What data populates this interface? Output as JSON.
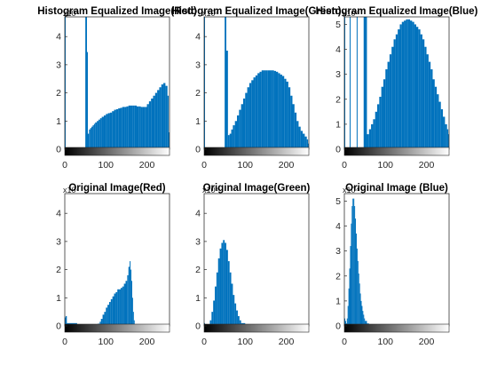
{
  "colors": {
    "bar": "#0072bd",
    "axis": "#262626",
    "background": "#ffffff"
  },
  "chart_data": [
    {
      "type": "bar",
      "title": "Histogram Equalized Image(Red)",
      "xlim": [
        0,
        255
      ],
      "ylim": [
        0,
        4.7
      ],
      "xticks": [
        "0",
        "100",
        "200"
      ],
      "yticks": [
        "0",
        "1",
        "2",
        "3",
        "4"
      ],
      "y_exponent_label": "x10⁴",
      "grid": false,
      "x": [
        0,
        50,
        54,
        56,
        59,
        62,
        65,
        68,
        71,
        74,
        78,
        82,
        86,
        90,
        95,
        100,
        105,
        110,
        115,
        120,
        125,
        130,
        135,
        140,
        145,
        150,
        155,
        160,
        165,
        170,
        175,
        180,
        185,
        190,
        195,
        200,
        205,
        210,
        215,
        220,
        225,
        230,
        235,
        240,
        245,
        250,
        253
      ],
      "values": [
        4.9,
        4.9,
        3.45,
        0.55,
        0.7,
        0.75,
        0.8,
        0.85,
        0.9,
        0.95,
        1.0,
        1.05,
        1.1,
        1.15,
        1.2,
        1.25,
        1.28,
        1.3,
        1.35,
        1.4,
        1.42,
        1.45,
        1.47,
        1.5,
        1.5,
        1.52,
        1.55,
        1.55,
        1.55,
        1.55,
        1.52,
        1.52,
        1.5,
        1.5,
        1.5,
        1.6,
        1.7,
        1.8,
        1.9,
        2.0,
        2.1,
        2.2,
        2.3,
        2.35,
        2.25,
        1.9,
        0.6
      ]
    },
    {
      "type": "bar",
      "title": "Histogram Equalized Image(Green)",
      "xlim": [
        0,
        255
      ],
      "ylim": [
        0,
        4.7
      ],
      "xticks": [
        "0",
        "100",
        "200"
      ],
      "yticks": [
        "0",
        "1",
        "2",
        "3",
        "4"
      ],
      "y_exponent_label": "x10⁴",
      "grid": false,
      "x": [
        0,
        50,
        54,
        58,
        62,
        66,
        70,
        75,
        80,
        85,
        90,
        95,
        100,
        105,
        110,
        115,
        120,
        125,
        130,
        135,
        140,
        145,
        150,
        155,
        160,
        165,
        170,
        175,
        180,
        185,
        190,
        195,
        200,
        205,
        210,
        215,
        220,
        225,
        230,
        235,
        240,
        245,
        250,
        253
      ],
      "values": [
        4.9,
        4.9,
        3.5,
        0.5,
        0.55,
        0.7,
        0.85,
        1.0,
        1.2,
        1.4,
        1.6,
        1.8,
        2.0,
        2.2,
        2.35,
        2.45,
        2.55,
        2.62,
        2.7,
        2.75,
        2.8,
        2.8,
        2.8,
        2.8,
        2.8,
        2.8,
        2.78,
        2.75,
        2.7,
        2.65,
        2.6,
        2.5,
        2.4,
        2.2,
        1.9,
        1.6,
        1.3,
        1.0,
        0.8,
        0.65,
        0.55,
        0.45,
        0.35,
        0.2
      ]
    },
    {
      "type": "bar",
      "title": "Histogram Equalized Image(Blue)",
      "xlim": [
        0,
        255
      ],
      "ylim": [
        0,
        5.3
      ],
      "xticks": [
        "0",
        "100",
        "200"
      ],
      "yticks": [
        "0",
        "1",
        "2",
        "3",
        "4",
        "5"
      ],
      "y_exponent_label": "x10⁴",
      "grid": false,
      "x": [
        0,
        13,
        30,
        47,
        55,
        60,
        65,
        70,
        75,
        80,
        85,
        90,
        95,
        100,
        105,
        110,
        115,
        120,
        125,
        130,
        135,
        140,
        145,
        150,
        155,
        160,
        165,
        170,
        175,
        180,
        185,
        190,
        195,
        200,
        205,
        210,
        215,
        220,
        225,
        230,
        235,
        240,
        245,
        250,
        253
      ],
      "values": [
        5.8,
        5.8,
        5.8,
        5.8,
        0.6,
        0.8,
        1.0,
        1.2,
        1.5,
        1.8,
        2.1,
        2.5,
        2.8,
        3.2,
        3.5,
        3.8,
        4.1,
        4.4,
        4.6,
        4.8,
        5.0,
        5.1,
        5.15,
        5.2,
        5.2,
        5.15,
        5.1,
        5.0,
        4.9,
        4.8,
        4.6,
        4.4,
        4.1,
        3.8,
        3.5,
        3.2,
        2.8,
        2.5,
        2.2,
        1.9,
        1.6,
        1.3,
        1.0,
        0.8,
        0.6
      ]
    },
    {
      "type": "bar",
      "title": "Original Image(Red)",
      "xlim": [
        0,
        255
      ],
      "ylim": [
        0,
        4.7
      ],
      "xticks": [
        "0",
        "100",
        "200"
      ],
      "yticks": [
        "0",
        "1",
        "2",
        "3",
        "4"
      ],
      "y_exponent_label": "x10⁴",
      "grid": false,
      "x": [
        0,
        2,
        5,
        30,
        50,
        70,
        80,
        85,
        88,
        92,
        96,
        100,
        104,
        108,
        112,
        116,
        120,
        124,
        128,
        132,
        136,
        140,
        144,
        148,
        152,
        155,
        158,
        160,
        162,
        164,
        166,
        168,
        170,
        180,
        200,
        220,
        255
      ],
      "values": [
        0.3,
        0.35,
        0.1,
        0,
        0,
        0,
        0.08,
        0.15,
        0.25,
        0.4,
        0.5,
        0.65,
        0.75,
        0.85,
        0.95,
        1.05,
        1.15,
        1.2,
        1.3,
        1.3,
        1.35,
        1.4,
        1.5,
        1.6,
        1.8,
        2.1,
        2.3,
        2.0,
        1.6,
        1.0,
        0.5,
        0.2,
        0.05,
        0,
        0,
        0,
        0
      ]
    },
    {
      "type": "bar",
      "title": "Original Image(Green)",
      "xlim": [
        0,
        255
      ],
      "ylim": [
        0,
        4.7
      ],
      "xticks": [
        "0",
        "100",
        "200"
      ],
      "yticks": [
        "0",
        "1",
        "2",
        "3",
        "4"
      ],
      "y_exponent_label": "x10⁴",
      "grid": false,
      "x": [
        0,
        2,
        5,
        10,
        14,
        18,
        22,
        26,
        30,
        34,
        38,
        42,
        46,
        50,
        54,
        58,
        62,
        66,
        70,
        74,
        78,
        82,
        86,
        90,
        100,
        120,
        150,
        200,
        255
      ],
      "values": [
        0.1,
        0.05,
        0,
        0.05,
        0.2,
        0.5,
        0.9,
        1.4,
        1.9,
        2.4,
        2.75,
        2.95,
        3.05,
        2.95,
        2.7,
        2.3,
        1.9,
        1.5,
        1.1,
        0.8,
        0.55,
        0.35,
        0.2,
        0.1,
        0,
        0,
        0,
        0,
        0
      ]
    },
    {
      "type": "bar",
      "title": "Original Image (Blue)",
      "xlim": [
        0,
        255
      ],
      "ylim": [
        0,
        5.3
      ],
      "xticks": [
        "0",
        "100",
        "200"
      ],
      "yticks": [
        "0",
        "1",
        "2",
        "3",
        "4",
        "5"
      ],
      "y_exponent_label": "x10⁴",
      "grid": false,
      "x": [
        0,
        2,
        4,
        6,
        8,
        10,
        12,
        14,
        16,
        18,
        20,
        22,
        24,
        26,
        28,
        30,
        32,
        34,
        36,
        38,
        40,
        42,
        44,
        46,
        48,
        50,
        55,
        60,
        80,
        120,
        200,
        255
      ],
      "values": [
        0.3,
        0.2,
        0.1,
        0.3,
        0.8,
        1.5,
        2.3,
        3.2,
        4.1,
        4.8,
        5.1,
        5.1,
        4.8,
        4.3,
        3.7,
        3.1,
        2.6,
        2.1,
        1.7,
        1.3,
        1.0,
        0.8,
        0.6,
        0.45,
        0.3,
        0.2,
        0.1,
        0.05,
        0,
        0,
        0,
        0
      ]
    }
  ]
}
